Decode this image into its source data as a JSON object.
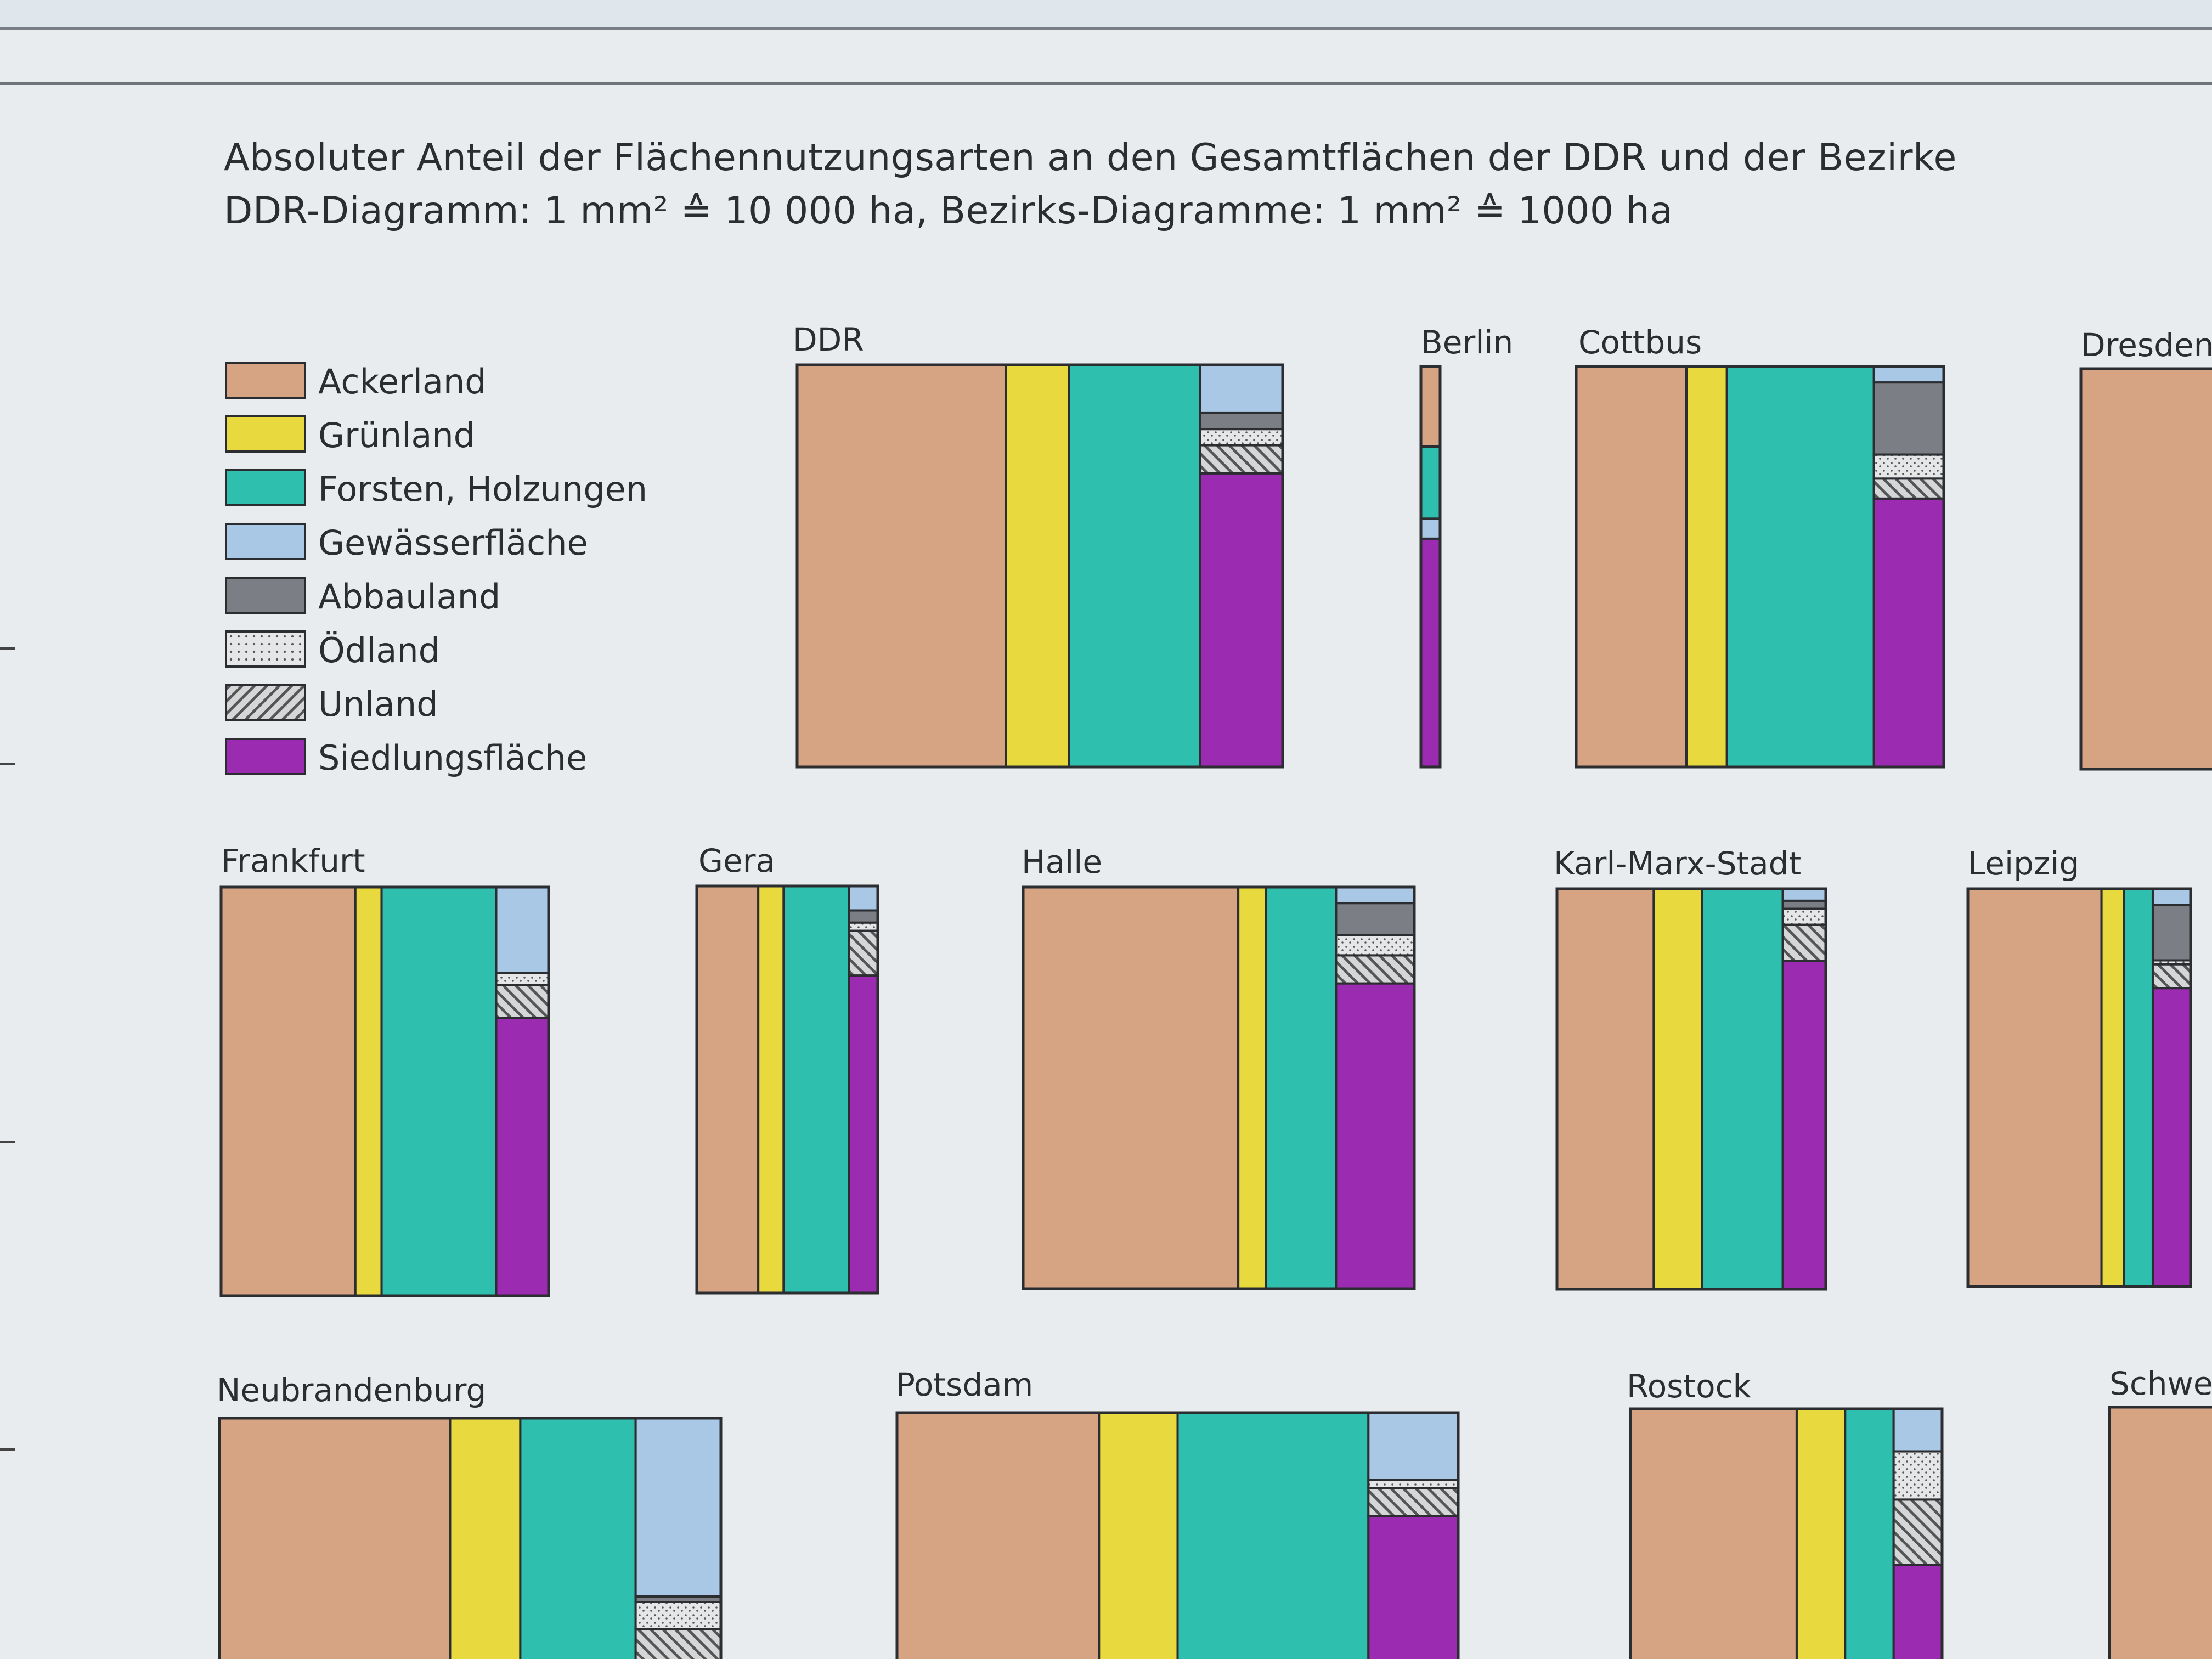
{
  "title": {
    "line1": "Absoluter Anteil der Flächennutzungsarten an den Gesamtflächen der DDR und der Bezirke",
    "line2": "DDR-Diagramm: 1 mm² ≙ 10 000 ha,    Bezirks-Diagramme: 1 mm² ≙ 1000 ha"
  },
  "legend": [
    {
      "label": "Ackerland",
      "color": "#d6a483",
      "pattern": "solid"
    },
    {
      "label": "Grünland",
      "color": "#e8d93e",
      "pattern": "solid"
    },
    {
      "label": "Forsten, Holzungen",
      "color": "#2fbfae",
      "pattern": "solid"
    },
    {
      "label": "Gewässerfläche",
      "color": "#a8c8e6",
      "pattern": "solid"
    },
    {
      "label": "Abbauland",
      "color": "#7b7f85",
      "pattern": "solid"
    },
    {
      "label": "Ödland",
      "color": "#e4e6e8",
      "pattern": "dots"
    },
    {
      "label": "Unland",
      "color": "#d4d6d8",
      "pattern": "hatch"
    },
    {
      "label": "Siedlungsfläche",
      "color": "#9b2bb0",
      "pattern": "solid"
    }
  ],
  "chart_data": [
    {
      "type": "bar",
      "name": "DDR",
      "columns": [
        {
          "category": "Ackerland",
          "width": 43
        },
        {
          "category": "Grünland",
          "width": 13
        },
        {
          "category": "Forsten, Holzungen",
          "width": 27
        },
        {
          "category": "other",
          "width": 17,
          "segments": [
            {
              "category": "Gewässerfläche",
              "share": 0.12
            },
            {
              "category": "Abbauland",
              "share": 0.04
            },
            {
              "category": "Ödland",
              "share": 0.04
            },
            {
              "category": "Unland",
              "share": 0.07
            },
            {
              "category": "Siedlungsfläche",
              "share": 0.73
            }
          ]
        }
      ]
    },
    {
      "type": "bar",
      "name": "Berlin",
      "columns": [
        {
          "category": "other",
          "width": 100,
          "segments": [
            {
              "category": "Ackerland",
              "share": 0.2
            },
            {
              "category": "Forsten, Holzungen",
              "share": 0.18
            },
            {
              "category": "Gewässerfläche",
              "share": 0.05
            },
            {
              "category": "Siedlungsfläche",
              "share": 0.57
            }
          ]
        }
      ]
    },
    {
      "type": "bar",
      "name": "Cottbus",
      "columns": [
        {
          "category": "Ackerland",
          "width": 30
        },
        {
          "category": "Grünland",
          "width": 11
        },
        {
          "category": "Forsten, Holzungen",
          "width": 40
        },
        {
          "category": "other",
          "width": 19,
          "segments": [
            {
              "category": "Gewässerfläche",
              "share": 0.04
            },
            {
              "category": "Abbauland",
              "share": 0.18
            },
            {
              "category": "Ödland",
              "share": 0.06
            },
            {
              "category": "Unland",
              "share": 0.05
            },
            {
              "category": "Siedlungsfläche",
              "share": 0.67
            }
          ]
        }
      ]
    },
    {
      "type": "bar",
      "name": "Dresden",
      "columns": [
        {
          "category": "Ackerland",
          "width": 100
        }
      ]
    },
    {
      "type": "bar",
      "name": "Frankfurt",
      "columns": [
        {
          "category": "Ackerland",
          "width": 41
        },
        {
          "category": "Grünland",
          "width": 8
        },
        {
          "category": "Forsten, Holzungen",
          "width": 35
        },
        {
          "category": "other",
          "width": 16,
          "segments": [
            {
              "category": "Gewässerfläche",
              "share": 0.21
            },
            {
              "category": "Ödland",
              "share": 0.03
            },
            {
              "category": "Unland",
              "share": 0.08
            },
            {
              "category": "Siedlungsfläche",
              "share": 0.68
            }
          ]
        }
      ]
    },
    {
      "type": "bar",
      "name": "Gera",
      "columns": [
        {
          "category": "Ackerland",
          "width": 34
        },
        {
          "category": "Grünland",
          "width": 14
        },
        {
          "category": "Forsten, Holzungen",
          "width": 36
        },
        {
          "category": "other",
          "width": 16,
          "segments": [
            {
              "category": "Gewässerfläche",
              "share": 0.06
            },
            {
              "category": "Abbauland",
              "share": 0.03
            },
            {
              "category": "Ödland",
              "share": 0.02
            },
            {
              "category": "Unland",
              "share": 0.11
            },
            {
              "category": "Siedlungsfläche",
              "share": 0.78
            }
          ]
        }
      ]
    },
    {
      "type": "bar",
      "name": "Halle",
      "columns": [
        {
          "category": "Ackerland",
          "width": 55
        },
        {
          "category": "Grünland",
          "width": 7
        },
        {
          "category": "Forsten, Holzungen",
          "width": 18
        },
        {
          "category": "other",
          "width": 20,
          "segments": [
            {
              "category": "Gewässerfläche",
              "share": 0.04
            },
            {
              "category": "Abbauland",
              "share": 0.08
            },
            {
              "category": "Ödland",
              "share": 0.05
            },
            {
              "category": "Unland",
              "share": 0.07
            },
            {
              "category": "Siedlungsfläche",
              "share": 0.76
            }
          ]
        }
      ]
    },
    {
      "type": "bar",
      "name": "Karl-Marx-Stadt",
      "columns": [
        {
          "category": "Ackerland",
          "width": 36
        },
        {
          "category": "Grünland",
          "width": 18
        },
        {
          "category": "Forsten, Holzungen",
          "width": 30
        },
        {
          "category": "other",
          "width": 16,
          "segments": [
            {
              "category": "Gewässerfläche",
              "share": 0.03
            },
            {
              "category": "Abbauland",
              "share": 0.02
            },
            {
              "category": "Ödland",
              "share": 0.04
            },
            {
              "category": "Unland",
              "share": 0.09
            },
            {
              "category": "Siedlungsfläche",
              "share": 0.82
            }
          ]
        }
      ]
    },
    {
      "type": "bar",
      "name": "Leipzig",
      "columns": [
        {
          "category": "Ackerland",
          "width": 60
        },
        {
          "category": "Grünland",
          "width": 10
        },
        {
          "category": "Forsten, Holzungen",
          "width": 13
        },
        {
          "category": "other",
          "width": 17,
          "segments": [
            {
              "category": "Gewässerfläche",
              "share": 0.04
            },
            {
              "category": "Abbauland",
              "share": 0.14
            },
            {
              "category": "Ödland",
              "share": 0.01
            },
            {
              "category": "Unland",
              "share": 0.06
            },
            {
              "category": "Siedlungsfläche",
              "share": 0.75
            }
          ]
        }
      ]
    },
    {
      "type": "bar",
      "name": "Neubrandenburg",
      "columns": [
        {
          "category": "Ackerland",
          "width": 46
        },
        {
          "category": "Grünland",
          "width": 14
        },
        {
          "category": "Forsten, Holzungen",
          "width": 23
        },
        {
          "category": "other",
          "width": 17,
          "segments": [
            {
              "category": "Gewässerfläche",
              "share": 0.65
            },
            {
              "category": "Abbauland",
              "share": 0.02
            },
            {
              "category": "Ödland",
              "share": 0.1
            },
            {
              "category": "Unland",
              "share": 0.23
            }
          ]
        }
      ]
    },
    {
      "type": "bar",
      "name": "Potsdam",
      "columns": [
        {
          "category": "Ackerland",
          "width": 36
        },
        {
          "category": "Grünland",
          "width": 14
        },
        {
          "category": "Forsten, Holzungen",
          "width": 34
        },
        {
          "category": "other",
          "width": 16,
          "segments": [
            {
              "category": "Gewässerfläche",
              "share": 0.24
            },
            {
              "category": "Ödland",
              "share": 0.03
            },
            {
              "category": "Unland",
              "share": 0.1
            },
            {
              "category": "Siedlungsfläche",
              "share": 0.63
            }
          ]
        }
      ]
    },
    {
      "type": "bar",
      "name": "Rostock",
      "columns": [
        {
          "category": "Ackerland",
          "width": 48
        },
        {
          "category": "Grünland",
          "width": 14
        },
        {
          "category": "Forsten, Holzungen",
          "width": 14
        },
        {
          "category": "other",
          "width": 14,
          "segments": [
            {
              "category": "Gewässerfläche",
              "share": 0.15
            },
            {
              "category": "Ödland",
              "share": 0.17
            },
            {
              "category": "Unland",
              "share": 0.23
            },
            {
              "category": "Siedlungsfläche",
              "share": 0.45
            }
          ]
        }
      ]
    },
    {
      "type": "bar",
      "name": "Schwe",
      "columns": [
        {
          "category": "Ackerland",
          "width": 100
        }
      ]
    }
  ]
}
